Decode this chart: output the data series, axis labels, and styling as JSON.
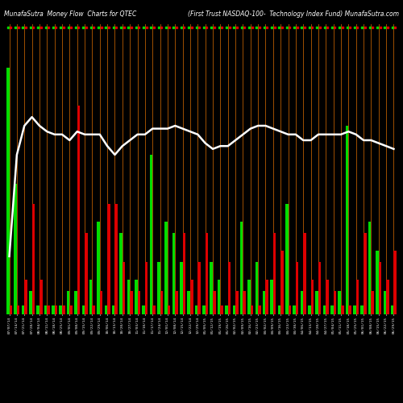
{
  "title_left": "MunafaSutra  Money Flow  Charts for QTEC",
  "title_right": "(First Trust NASDAQ-100-  Technology Index Fund) MunafaSutra.com",
  "background_color": "#000000",
  "bar_color_green": "#00dd00",
  "bar_color_red": "#dd0000",
  "line_color": "#ffffff",
  "orange_line_color": "#cc6600",
  "dates": [
    "07/07/14",
    "07/14/14",
    "07/21/14",
    "07/28/14",
    "08/04/14",
    "08/11/14",
    "08/18/14",
    "08/25/14",
    "09/01/14",
    "09/08/14",
    "09/15/14",
    "09/22/14",
    "09/29/14",
    "10/06/14",
    "10/13/14",
    "10/20/14",
    "10/27/14",
    "11/03/14",
    "11/10/14",
    "11/17/14",
    "11/24/14",
    "12/01/14",
    "12/08/14",
    "12/15/14",
    "12/22/14",
    "12/29/14",
    "01/05/15",
    "01/12/15",
    "01/19/15",
    "01/26/15",
    "02/02/15",
    "02/09/15",
    "02/16/15",
    "02/23/15",
    "03/02/15",
    "03/09/15",
    "03/16/15",
    "03/23/15",
    "03/30/15",
    "04/06/15",
    "04/13/15",
    "04/20/15",
    "04/27/15",
    "05/04/15",
    "05/11/15",
    "05/18/15",
    "05/25/15",
    "06/01/15",
    "06/08/15",
    "06/15/15",
    "06/22/15",
    "06/29/15"
  ],
  "green_values": [
    85,
    45,
    3,
    8,
    3,
    3,
    3,
    3,
    8,
    8,
    3,
    12,
    32,
    3,
    3,
    28,
    12,
    12,
    3,
    55,
    18,
    32,
    28,
    18,
    8,
    3,
    3,
    18,
    12,
    3,
    3,
    32,
    12,
    18,
    8,
    12,
    3,
    38,
    3,
    8,
    3,
    8,
    3,
    3,
    8,
    65,
    3,
    3,
    32,
    22,
    8,
    3
  ],
  "red_values": [
    3,
    3,
    12,
    38,
    12,
    3,
    3,
    3,
    3,
    72,
    28,
    3,
    8,
    38,
    38,
    18,
    8,
    8,
    18,
    3,
    8,
    3,
    8,
    28,
    12,
    18,
    28,
    8,
    3,
    18,
    8,
    8,
    3,
    3,
    12,
    28,
    22,
    3,
    18,
    28,
    12,
    18,
    12,
    8,
    3,
    3,
    12,
    28,
    8,
    18,
    12,
    22
  ],
  "price_line": [
    20,
    55,
    65,
    68,
    65,
    63,
    62,
    62,
    60,
    63,
    62,
    62,
    62,
    58,
    55,
    58,
    60,
    62,
    62,
    64,
    64,
    64,
    65,
    64,
    63,
    62,
    59,
    57,
    58,
    58,
    60,
    62,
    64,
    65,
    65,
    64,
    63,
    62,
    62,
    60,
    60,
    62,
    62,
    62,
    62,
    63,
    62,
    60,
    60,
    59,
    58,
    57
  ]
}
